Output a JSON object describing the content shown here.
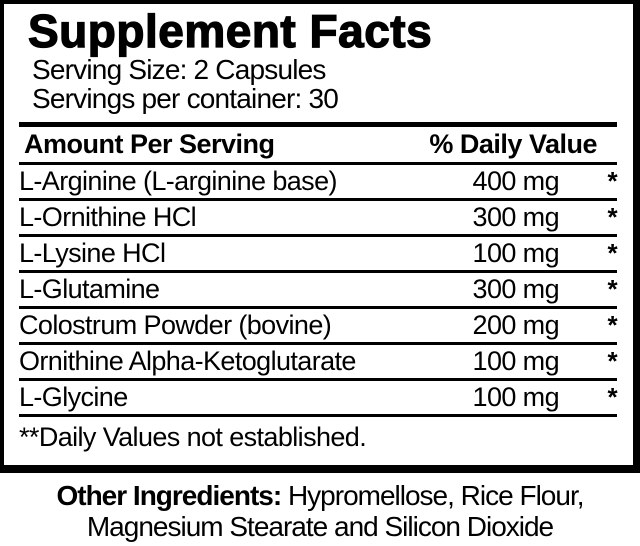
{
  "label": {
    "title": "Supplement Facts",
    "serving_size": "Serving Size: 2 Capsules",
    "servings_per_container": "Servings per container: 30",
    "header": {
      "amount_per_serving": "Amount Per Serving",
      "daily_value": "% Daily Value"
    },
    "rows": [
      {
        "name": "L-Arginine (L-arginine base)",
        "amount": "400 mg",
        "dv": "*"
      },
      {
        "name": "L-Ornithine HCl",
        "amount": "300 mg",
        "dv": "*"
      },
      {
        "name": "L-Lysine HCl",
        "amount": "100 mg",
        "dv": "*"
      },
      {
        "name": "L-Glutamine",
        "amount": "300 mg",
        "dv": "*"
      },
      {
        "name": "Colostrum Powder (bovine)",
        "amount": "200 mg",
        "dv": "*"
      },
      {
        "name": "Ornithine Alpha-Ketoglutarate",
        "amount": "100 mg",
        "dv": "*"
      },
      {
        "name": "L-Glycine",
        "amount": "100 mg",
        "dv": "*"
      }
    ],
    "footnote": "**Daily Values not established."
  },
  "other_ingredients": {
    "label": "Other Ingredients:",
    "line1_rest": " Hypromellose, Rice Flour,",
    "line2": "Magnesium Stearate and Silicon Dioxide"
  },
  "colors": {
    "text": "#000000",
    "background": "#ffffff"
  }
}
